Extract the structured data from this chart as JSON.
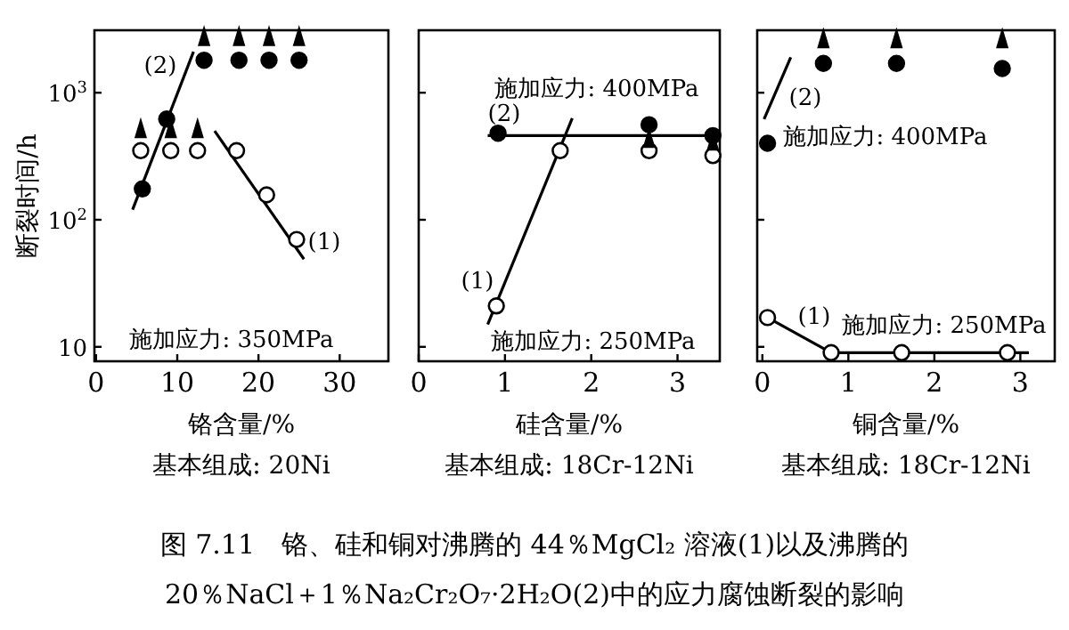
{
  "chart_data": [
    {
      "type": "scatter",
      "xlabel": "铬含量/%",
      "ylabel": "断裂时间/h",
      "log": "y",
      "xlim": [
        -0.2,
        36
      ],
      "ylim": [
        7.7,
        3100
      ],
      "xticks": [
        0,
        10,
        20,
        30
      ],
      "yticks": [
        10,
        {
          "value": 100,
          "label": "10$^{2}$"
        },
        {
          "value": 1000,
          "label": "10$^{3}$"
        }
      ],
      "series": [
        {
          "type": "line",
          "color": "#000000",
          "marker": "none",
          "x": [
            4.5,
            12
          ],
          "values": [
            120,
            2100
          ]
        },
        {
          "type": "line",
          "color": "#000000",
          "marker": "none",
          "x": [
            14.6,
            25.6
          ],
          "values": [
            500,
            49
          ]
        },
        {
          "type": "scatter",
          "color": "#000000",
          "marker": "circle",
          "x": [
            5.7,
            8.7,
            13.3,
            17.6,
            21.3,
            25
          ],
          "values": [
            175,
            620,
            1800,
            1800,
            1800,
            1800
          ]
        },
        {
          "type": "scatter",
          "color": "#ffffff",
          "marker": "circle",
          "x": [
            5.5,
            9.2,
            12.5,
            17.3,
            21,
            24.7
          ],
          "values": [
            350,
            350,
            350,
            350,
            157,
            70
          ]
        },
        {
          "type": "scatter",
          "color": "#000000",
          "marker": "triangle",
          "x": [
            13.3,
            17.6,
            21.3,
            25,
            5.5,
            9.2,
            12.5
          ],
          "values": [
            2600,
            2600,
            2600,
            2600,
            490,
            490,
            490
          ]
        }
      ],
      "annotations": [
        "基本组成: 20Ni",
        "图 7.11　铬、硅和铜对沸腾的 44％MgCl₂ 溶液(1)以及沸腾的",
        "20％NaCl＋1％Na₂Cr₂O₇·2H₂O(2)中的应力腐蚀断裂的影响",
        "(2)",
        "(1)",
        "施加应力: 350MPa"
      ]
    },
    {
      "type": "scatter",
      "xlabel": "硅含量/%",
      "log": "y",
      "tick_labels": "x",
      "xlim": [
        0,
        3.49
      ],
      "ylim": [
        7.7,
        3100
      ],
      "xticks": [
        0,
        1,
        2,
        3
      ],
      "yticks": [
        {
          "value": 10,
          "label": null
        },
        {
          "value": 100,
          "label": null
        },
        {
          "value": 1000,
          "label": null
        }
      ],
      "series": [
        {
          "type": "line",
          "color": "#000000",
          "marker": "none",
          "x": [
            0.8,
            3.45
          ],
          "values": [
            460,
            460
          ]
        },
        {
          "type": "line",
          "color": "#000000",
          "marker": "none",
          "x": [
            0.8,
            1.78
          ],
          "values": [
            15,
            630
          ]
        },
        {
          "type": "scatter",
          "color": "#000000",
          "marker": "circle",
          "x": [
            0.92,
            2.67,
            3.41
          ],
          "values": [
            480,
            560,
            460
          ]
        },
        {
          "type": "scatter",
          "color": "#ffffff",
          "marker": "circle",
          "x": [
            0.9,
            1.64,
            2.67,
            3.41
          ],
          "values": [
            21,
            350,
            350,
            320
          ]
        },
        {
          "type": "scatter",
          "color": "#000000",
          "marker": "triangle",
          "x": [
            2.67,
            3.41
          ],
          "values": [
            410,
            390
          ]
        }
      ],
      "annotations": [
        "基本组成: 18Cr-12Ni",
        "施加应力: 400MPa",
        "(2)",
        "(1)",
        "施加应力: 250MPa"
      ]
    },
    {
      "type": "scatter",
      "xlabel": "铜含量/%",
      "log": "y",
      "tick_labels": "x",
      "xlim": [
        -0.06,
        3.4
      ],
      "ylim": [
        7.7,
        3100
      ],
      "xticks": [
        0,
        1,
        2,
        3
      ],
      "yticks": [
        {
          "value": 10,
          "label": null
        },
        {
          "value": 100,
          "label": null
        },
        {
          "value": 1000,
          "label": null
        }
      ],
      "series": [
        {
          "type": "line",
          "color": "#000000",
          "marker": "none",
          "x": [
            0.02,
            0.33
          ],
          "values": [
            620,
            1900
          ]
        },
        {
          "type": "line",
          "color": "#000000",
          "marker": "none",
          "x": [
            0.06,
            0.8,
            3.1
          ],
          "values": [
            17,
            9,
            9
          ]
        },
        {
          "type": "scatter",
          "color": "#000000",
          "marker": "circle",
          "x": [
            0.06,
            0.71,
            1.56,
            2.79
          ],
          "values": [
            400,
            1700,
            1700,
            1550
          ]
        },
        {
          "type": "scatter",
          "color": "#ffffff",
          "marker": "circle",
          "x": [
            0.06,
            0.8,
            1.62,
            2.85
          ],
          "values": [
            17,
            9,
            9,
            9
          ]
        },
        {
          "type": "scatter",
          "color": "#000000",
          "marker": "triangle",
          "x": [
            0.71,
            1.56,
            2.79
          ],
          "values": [
            2500,
            2500,
            2500
          ]
        }
      ],
      "annotations": [
        "基本组成: 18Cr-12Ni",
        "(2)",
        "施加应力: 400MPa",
        "(1)",
        "施加应力: 250MPa"
      ]
    }
  ]
}
